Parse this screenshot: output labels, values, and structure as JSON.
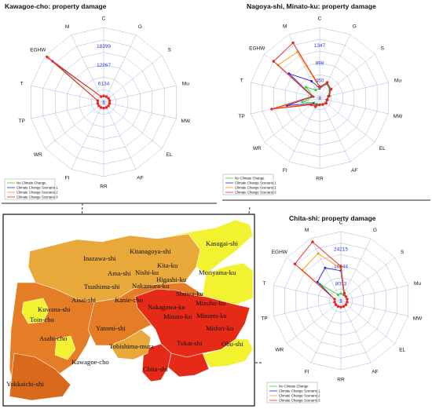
{
  "axes_order": [
    "C",
    "G",
    "S",
    "Mu",
    "MW",
    "EL",
    "AF",
    "RR",
    "FI",
    "WR",
    "TP",
    "T",
    "EGHW",
    "M"
  ],
  "scenario_colors": [
    "#33cc33",
    "#2222dd",
    "#ff9900",
    "#ee2222"
  ],
  "chart_data": [
    {
      "type": "radar",
      "title": "Kawagoe-cho: property damage",
      "axes": [
        "C",
        "G",
        "S",
        "Mu",
        "MW",
        "EL",
        "AF",
        "RR",
        "FI",
        "WR",
        "TP",
        "T",
        "EGHW",
        "M"
      ],
      "ticks": [
        1,
        6134,
        12267,
        18399
      ],
      "rmax": 24532,
      "legend": [
        "No Climate Change",
        "Climate Change Scenario 1",
        "Climate Change Scenario 2",
        "Climate Change Scenario 3"
      ],
      "series": [
        {
          "name": "No Climate Change",
          "values": [
            2000,
            2000,
            2000,
            2000,
            2000,
            2000,
            2000,
            2000,
            2000,
            2000,
            2000,
            2000,
            19500,
            2000
          ]
        },
        {
          "name": "Climate Change Scenario 1",
          "values": [
            2000,
            2000,
            2000,
            2000,
            2000,
            2000,
            2000,
            2000,
            2000,
            2000,
            2000,
            2000,
            21500,
            2000
          ]
        },
        {
          "name": "Climate Change Scenario 2",
          "values": [
            2000,
            2000,
            2000,
            2000,
            2000,
            2000,
            2000,
            2000,
            2000,
            2000,
            2000,
            2000,
            23200,
            2000
          ]
        },
        {
          "name": "Climate Change Scenario 3",
          "values": [
            2000,
            2000,
            2000,
            2000,
            2000,
            2000,
            2000,
            2000,
            2000,
            2000,
            2000,
            2000,
            23800,
            2000
          ]
        }
      ]
    },
    {
      "type": "radar",
      "title": "Nagoya-shi, Minato-ku: property damage",
      "axes": [
        "C",
        "G",
        "S",
        "Mu",
        "MW",
        "EL",
        "AF",
        "RR",
        "FI",
        "WR",
        "TP",
        "T",
        "EGHW",
        "M"
      ],
      "ticks": [
        1,
        450,
        898,
        1347
      ],
      "rmax": 1796,
      "legend": [
        "No Climate Change",
        "Climate Change Scenario 1",
        "Climate Change Scenario 2",
        "Climate Change Scenario 3"
      ],
      "series": [
        {
          "name": "No Climate Change",
          "values": [
            250,
            400,
            330,
            220,
            180,
            190,
            170,
            160,
            170,
            190,
            450,
            160,
            450,
            230
          ]
        },
        {
          "name": "Climate Change Scenario 1",
          "values": [
            250,
            420,
            350,
            230,
            190,
            200,
            180,
            170,
            200,
            220,
            850,
            180,
            1000,
            480
          ]
        },
        {
          "name": "Climate Change Scenario 2",
          "values": [
            270,
            430,
            360,
            240,
            200,
            200,
            180,
            170,
            220,
            250,
            1100,
            190,
            1350,
            1300
          ]
        },
        {
          "name": "Climate Change Scenario 3",
          "values": [
            290,
            440,
            370,
            250,
            200,
            210,
            180,
            170,
            240,
            270,
            1250,
            200,
            1500,
            1560
          ]
        }
      ]
    },
    {
      "type": "radar",
      "title": "Chita-shi: property damage",
      "axes": [
        "C",
        "G",
        "S",
        "Mu",
        "MW",
        "EL",
        "AF",
        "RR",
        "FI",
        "WR",
        "TP",
        "T",
        "EGHW",
        "M"
      ],
      "ticks": [
        1,
        8073,
        16144,
        24215
      ],
      "rmax": 32286,
      "legend": [
        "No Climate Change",
        "Climate Change Scenario 1",
        "Climate Change Scenario 2",
        "Climate Change Scenario 3"
      ],
      "series": [
        {
          "name": "No Climate Change",
          "values": [
            3300,
            3000,
            3000,
            3000,
            3000,
            3000,
            3000,
            3000,
            3000,
            3000,
            3000,
            3000,
            12500,
            3000
          ]
        },
        {
          "name": "Climate Change Scenario 1",
          "values": [
            14000,
            3300,
            3000,
            3000,
            3000,
            3000,
            3000,
            3000,
            3000,
            3000,
            3000,
            3000,
            14000,
            17000
          ]
        },
        {
          "name": "Climate Change Scenario 2",
          "values": [
            15000,
            3500,
            3000,
            3000,
            3000,
            3000,
            3000,
            3000,
            3000,
            3000,
            3000,
            3000,
            23000,
            24500
          ]
        },
        {
          "name": "Climate Change Scenario 3",
          "values": [
            16000,
            3800,
            3000,
            3000,
            3000,
            3000,
            3000,
            3000,
            3000,
            3000,
            3000,
            3000,
            27500,
            30500
          ]
        }
      ]
    }
  ],
  "map": {
    "colors": {
      "light": "#e8a83a",
      "mid": "#e57d26",
      "high": "#e52a18",
      "yellow": "#f2f230",
      "dark_orange": "#d96a1c"
    },
    "labels": [
      "Kitanagoya-shi",
      "Kasugai-shi",
      "Inazawa-shi",
      "Kita-ku",
      "Nishi-ku",
      "Moriyama-ku",
      "Ama-shi",
      "Higashi-ku",
      "Tsushima-shi",
      "Nakamura-ku",
      "Aisai-shi",
      "Showa-ku",
      "Kanie-cho",
      "Nakagawa-ku",
      "Mizuho-ku",
      "Toin-cho",
      "Kuwana-shi",
      "Minato-ku",
      "Minami-ku",
      "Yatomi-shi",
      "Tobishima-mura",
      "Midori-ku",
      "Asahi-cho",
      "Tokai-shi",
      "Obu-shi",
      "Yokkaichi-shi",
      "Kawagoe-cho",
      "Chita-shi"
    ]
  }
}
